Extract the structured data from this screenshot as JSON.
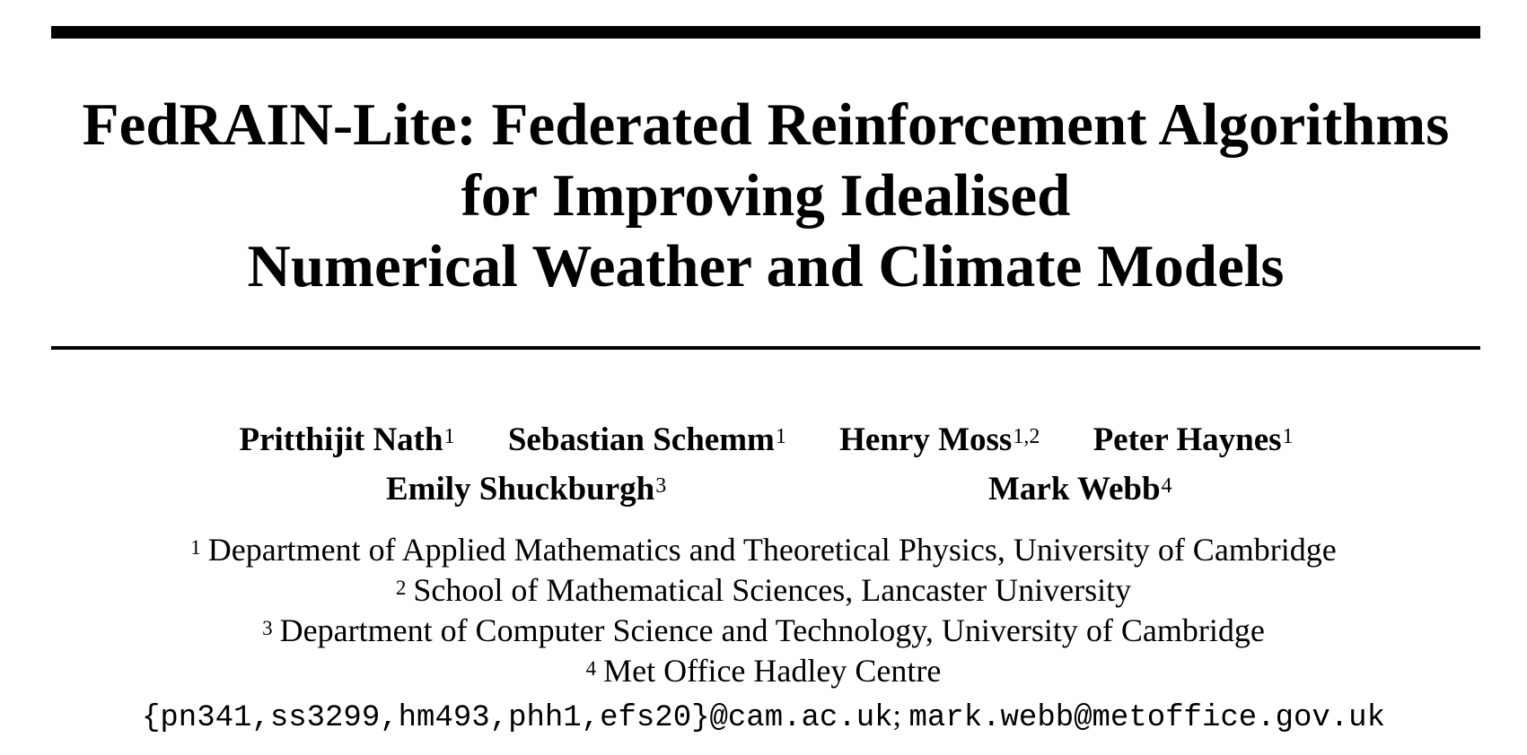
{
  "title": {
    "line1": "FedRAIN-Lite: Federated Reinforcement Algorithms",
    "line2": "for Improving Idealised",
    "line3": "Numerical Weather and Climate Models"
  },
  "authors": [
    {
      "name": "Pritthijit Nath",
      "affil": "1"
    },
    {
      "name": "Sebastian Schemm",
      "affil": "1"
    },
    {
      "name": "Henry Moss",
      "affil": "1,2"
    },
    {
      "name": "Peter Haynes",
      "affil": "1"
    },
    {
      "name": "Emily Shuckburgh",
      "affil": "3"
    },
    {
      "name": "Mark Webb",
      "affil": "4"
    }
  ],
  "affiliations": [
    {
      "num": "1",
      "text": "Department of Applied Mathematics and Theoretical Physics, University of Cambridge"
    },
    {
      "num": "2",
      "text": "School of Mathematical Sciences, Lancaster University"
    },
    {
      "num": "3",
      "text": "Department of Computer Science and Technology, University of Cambridge"
    },
    {
      "num": "4",
      "text": "Met Office Hadley Centre"
    }
  ],
  "emails": {
    "cambridge": "{pn341,ss3299,hm493,phh1,efs20}@cam.ac.uk",
    "separator": ";",
    "metoffice": "mark.webb@metoffice.gov.uk"
  }
}
